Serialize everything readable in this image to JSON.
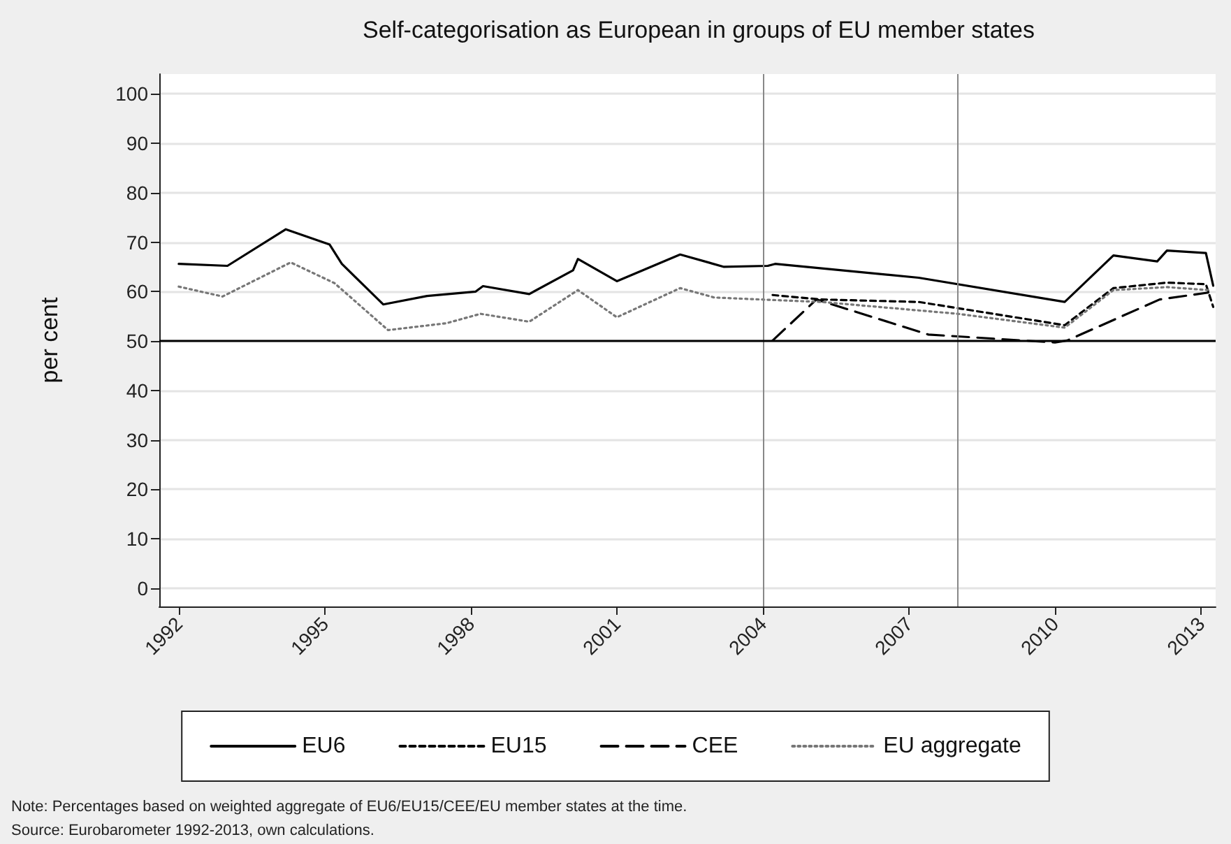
{
  "chart_data": {
    "type": "line",
    "title": "Self-categorisation as European in groups of EU member states",
    "ylabel": "per cent",
    "annotations": [
      "Note: Percentages based on weighted aggregate of EU6/EU15/CEE/EU member states at the time.",
      "Source: Eurobarometer 1992-2013, own calculations."
    ],
    "series": [
      {
        "name": "EU6",
        "color": "#000000",
        "line_style": "solid",
        "x": [
          1992.0,
          1993.0,
          1994.2,
          1995.1,
          1995.35,
          1996.2,
          1997.1,
          1998.1,
          1998.25,
          1999.2,
          2000.1,
          2000.2,
          2001.0,
          2002.3,
          2003.2,
          2004.1,
          2004.25,
          2007.2,
          2010.2,
          2011.2,
          2012.1,
          2012.3,
          2013.1,
          2013.25
        ],
        "values": [
          65.6,
          65.2,
          72.6,
          69.5,
          65.6,
          57.4,
          59.1,
          60.0,
          61.1,
          59.5,
          64.3,
          66.6,
          62.1,
          67.5,
          65.0,
          65.2,
          65.6,
          62.8,
          57.9,
          67.3,
          66.1,
          68.3,
          67.8,
          61.2
        ]
      },
      {
        "name": "EU15",
        "color": "#000000",
        "line_style": "dashed",
        "x": [
          2004.2,
          2005.2,
          2007.2,
          2010.2,
          2011.2,
          2012.3,
          2013.1,
          2013.25
        ],
        "values": [
          59.3,
          58.4,
          57.9,
          53.2,
          60.7,
          61.8,
          61.5,
          56.9
        ]
      },
      {
        "name": "CEE",
        "color": "#000000",
        "line_style": "dashed",
        "x": [
          2004.2,
          2005.1,
          2007.4,
          2008.7,
          2010.0,
          2010.25,
          2012.15,
          2013.15
        ],
        "values": [
          50.1,
          58.4,
          51.3,
          50.5,
          49.7,
          50.1,
          58.4,
          59.8
        ]
      },
      {
        "name": "EU aggregate",
        "color": "#777777",
        "line_style": "dotted",
        "x": [
          1992.0,
          1992.9,
          1994.3,
          1995.2,
          1996.3,
          1997.5,
          1998.2,
          1999.2,
          2000.2,
          2001.0,
          2002.3,
          2003.0,
          2003.95,
          2005.2,
          2008.0,
          2010.2,
          2011.2,
          2012.3,
          2013.15
        ],
        "values": [
          61.0,
          59.0,
          65.9,
          61.7,
          52.2,
          53.6,
          55.5,
          53.9,
          60.3,
          54.8,
          60.7,
          58.8,
          58.4,
          57.9,
          55.5,
          52.7,
          60.3,
          60.9,
          60.3
        ]
      }
    ],
    "xlim": [
      1991.6,
      2013.3
    ],
    "xticks": [
      1992,
      1995,
      1998,
      2001,
      2004,
      2007,
      2010,
      2013
    ],
    "ylim": [
      -3.7,
      104
    ],
    "yticks": [
      0,
      10,
      20,
      30,
      40,
      50,
      60,
      70,
      80,
      90,
      100
    ],
    "ref_lines": [
      {
        "axis": "x",
        "value": 2004,
        "color": "#888888"
      },
      {
        "axis": "x",
        "value": 2008,
        "color": "#888888"
      },
      {
        "axis": "y",
        "value": 50,
        "color": "#000000"
      }
    ],
    "grid": "y",
    "legend": "bottom",
    "marker": "none"
  }
}
